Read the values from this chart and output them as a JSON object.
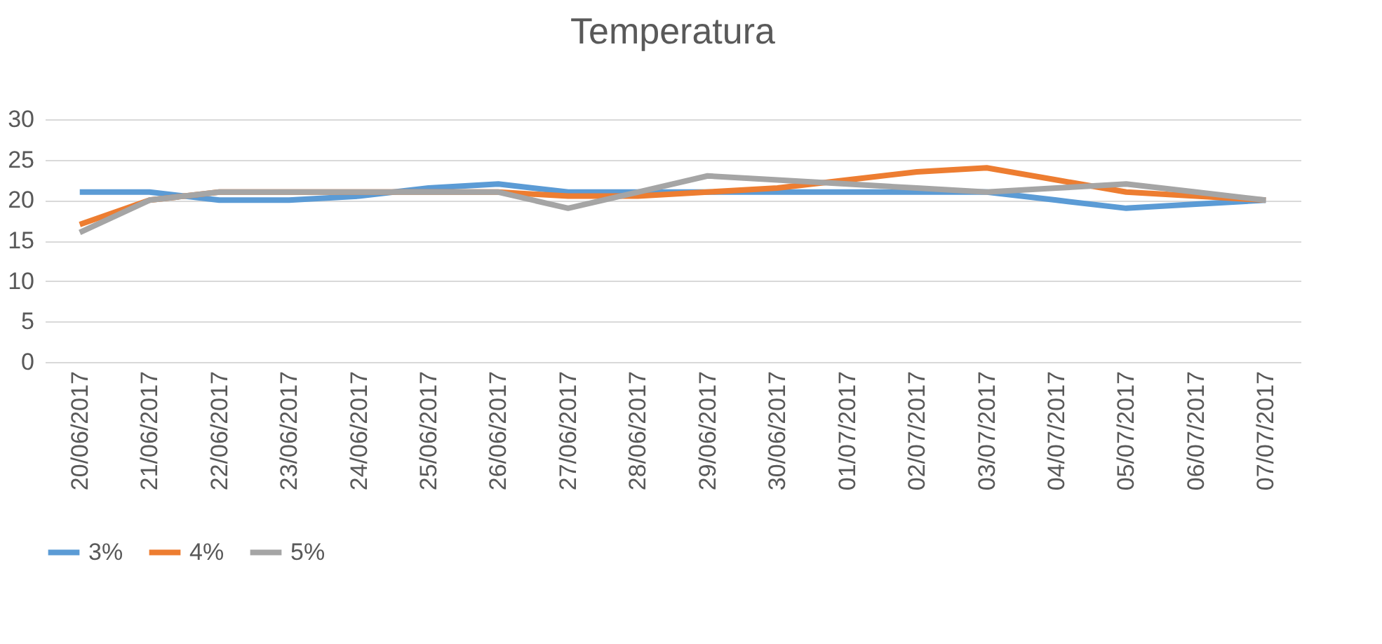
{
  "chart_data": {
    "type": "line",
    "title": "Temperatura",
    "categories": [
      "20/06/2017",
      "21/06/2017",
      "22/06/2017",
      "23/06/2017",
      "24/06/2017",
      "25/06/2017",
      "26/06/2017",
      "27/06/2017",
      "28/06/2017",
      "29/06/2017",
      "30/06/2017",
      "01/07/2017",
      "02/07/2017",
      "03/07/2017",
      "04/07/2017",
      "05/07/2017",
      "06/07/2017",
      "07/07/2017"
    ],
    "series": [
      {
        "name": "3%",
        "color": "#5b9bd5",
        "values": [
          21,
          21,
          20,
          20,
          20.5,
          21.5,
          22,
          21,
          21,
          21,
          21,
          21,
          21,
          21,
          20,
          19,
          19.5,
          20
        ]
      },
      {
        "name": "4%",
        "color": "#ed7d31",
        "values": [
          17,
          20,
          21,
          21,
          21,
          21,
          21,
          20.5,
          20.5,
          21,
          21.5,
          22.5,
          23.5,
          24,
          22.5,
          21,
          20.5,
          20
        ]
      },
      {
        "name": "5%",
        "color": "#a5a5a5",
        "values": [
          16,
          20,
          21,
          21,
          21,
          21,
          21,
          19,
          21,
          23,
          22.5,
          22,
          21.5,
          21,
          21.5,
          22,
          21,
          20
        ]
      }
    ],
    "ylim": [
      0,
      30
    ],
    "yticks": [
      0,
      5,
      10,
      15,
      20,
      25,
      30
    ],
    "grid": "y",
    "legend": "bottom",
    "marker": "none",
    "line_style": "solid"
  }
}
